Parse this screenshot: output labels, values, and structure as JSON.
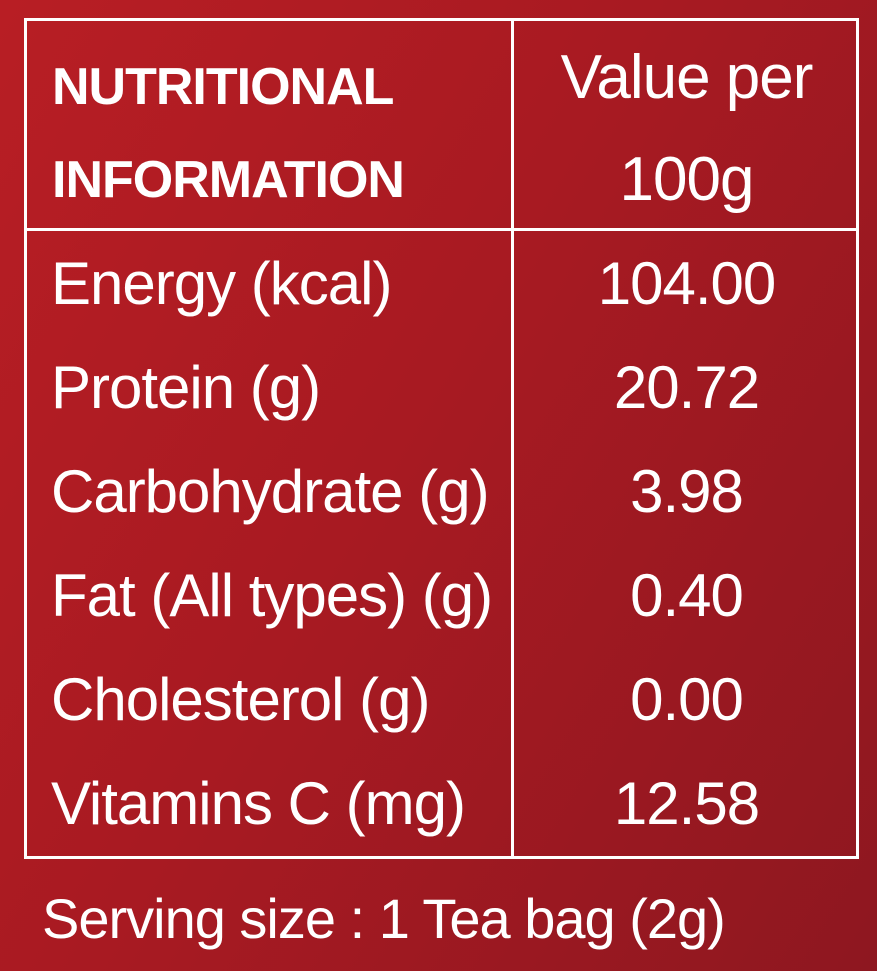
{
  "header": {
    "left_line1": "NUTRITIONAL",
    "left_line2": "INFORMATION",
    "right_line1": "Value per",
    "right_line2": "100g"
  },
  "rows": [
    {
      "label": "Energy (kcal)",
      "value": "104.00"
    },
    {
      "label": "Protein (g)",
      "value": "20.72"
    },
    {
      "label": "Carbohydrate (g)",
      "value": "3.98"
    },
    {
      "label": "Fat (All types) (g)",
      "value": "0.40"
    },
    {
      "label": "Cholesterol (g)",
      "value": "0.00"
    },
    {
      "label": "Vitamins C (mg)",
      "value": "12.58"
    }
  ],
  "footer": {
    "serving_size": "Serving size : 1 Tea bag (2g)"
  },
  "colors": {
    "background": "#a81a22",
    "text": "#ffffff",
    "border": "#ffffff"
  }
}
